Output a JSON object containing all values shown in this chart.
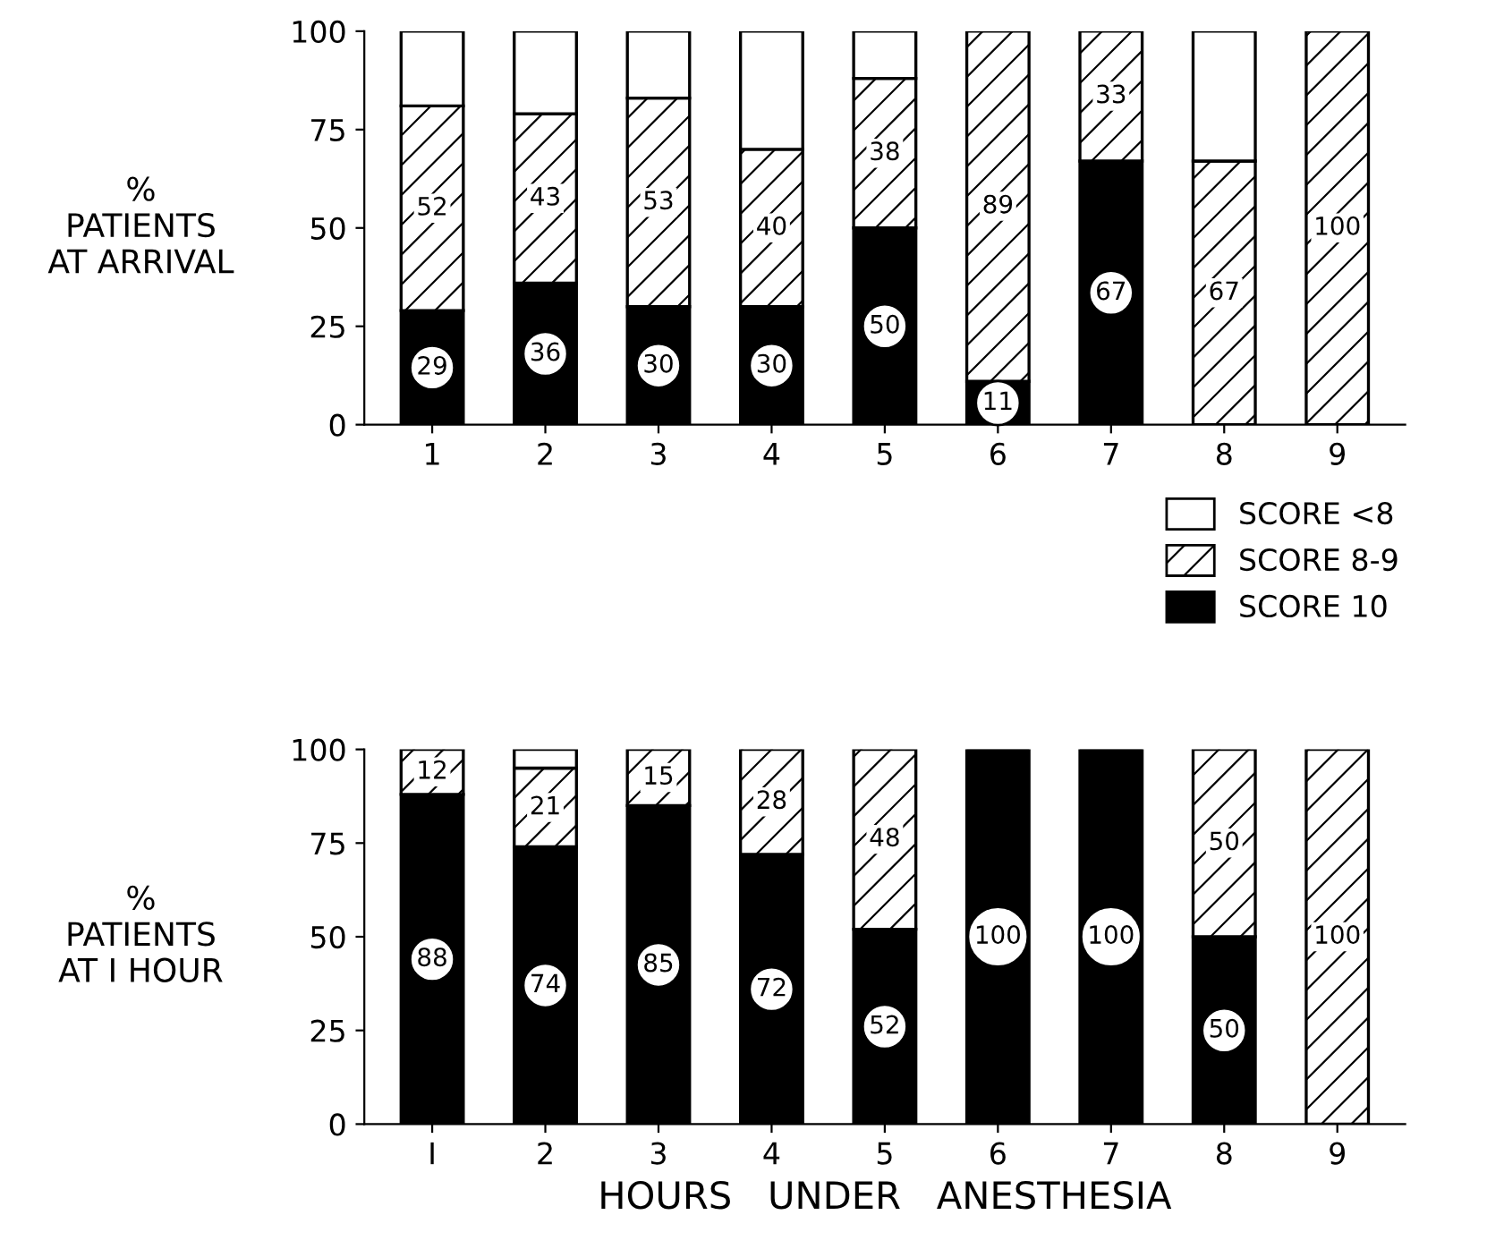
{
  "chart_data": [
    {
      "type": "bar",
      "stacked": true,
      "ylabel": "%\nPATIENTS\nAT ARRIVAL",
      "categories": [
        "1",
        "2",
        "3",
        "4",
        "5",
        "6",
        "7",
        "8",
        "9"
      ],
      "ylim": [
        0,
        100
      ],
      "yticks": [
        0,
        25,
        50,
        75,
        100
      ],
      "grid": false,
      "legend": "bottom right",
      "series": [
        {
          "name": "SCORE 10",
          "color": "#000000",
          "values": [
            29,
            36,
            30,
            30,
            50,
            11,
            67,
            0,
            0
          ],
          "value_labels": [
            "29",
            "36",
            "30",
            "30",
            "50",
            "11",
            "67",
            null,
            null
          ]
        },
        {
          "name": "SCORE 8-9",
          "color": "#000000",
          "values": [
            52,
            43,
            53,
            40,
            38,
            89,
            33,
            67,
            100
          ],
          "value_labels": [
            "52",
            "43",
            "53",
            "40",
            "38",
            "89",
            "33",
            "67",
            "100"
          ]
        },
        {
          "name": "SCORE <8",
          "color": "#ffffff",
          "values": [
            19,
            21,
            17,
            30,
            12,
            0,
            0,
            33,
            0
          ]
        }
      ]
    },
    {
      "type": "bar",
      "stacked": true,
      "ylabel": "%\nPATIENTS\nAT I HOUR",
      "xlabel": "HOURS   UNDER   ANESTHESIA",
      "categories": [
        "I",
        "2",
        "3",
        "4",
        "5",
        "6",
        "7",
        "8",
        "9"
      ],
      "ylim": [
        0,
        100
      ],
      "yticks": [
        0,
        25,
        50,
        75,
        100
      ],
      "grid": false,
      "series": [
        {
          "color": "#000000",
          "values": [
            88,
            74,
            85,
            72,
            52,
            100,
            100,
            50,
            0
          ],
          "value_labels": [
            "88",
            "74",
            "85",
            "72",
            "52",
            "100",
            "100",
            "50",
            null
          ]
        },
        {
          "color": "#000000",
          "values": [
            12,
            21,
            15,
            28,
            48,
            0,
            0,
            50,
            100
          ],
          "value_labels": [
            "12",
            "21",
            "15",
            "28",
            "48",
            null,
            null,
            "50",
            "100"
          ]
        },
        {
          "color": "#ffffff",
          "values": [
            0,
            5,
            0,
            0,
            0,
            0,
            0,
            0,
            0
          ]
        }
      ]
    }
  ]
}
